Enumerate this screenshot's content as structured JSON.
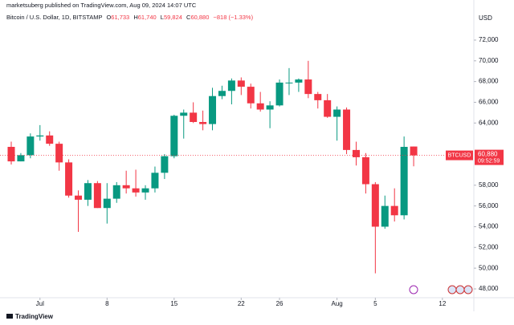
{
  "header": {
    "published": "marketsuberg published on TradingView.com, Aug 09, 2024 14:07 UTC",
    "symbol": "Bitcoin / U.S. Dollar, 1D, BITSTAMP",
    "open_label": "O",
    "open": "61,733",
    "high_label": "H",
    "high": "61,740",
    "low_label": "L",
    "low": "59,824",
    "close_label": "C",
    "close": "60,880",
    "change": "−818 (−1.33%)"
  },
  "chart_data": {
    "type": "candlestick",
    "currency": "USD",
    "x": [
      "2024-06-28",
      "2024-06-29",
      "2024-06-30",
      "2024-07-01",
      "2024-07-02",
      "2024-07-03",
      "2024-07-04",
      "2024-07-05",
      "2024-07-06",
      "2024-07-07",
      "2024-07-08",
      "2024-07-09",
      "2024-07-10",
      "2024-07-11",
      "2024-07-12",
      "2024-07-13",
      "2024-07-14",
      "2024-07-15",
      "2024-07-16",
      "2024-07-17",
      "2024-07-18",
      "2024-07-19",
      "2024-07-20",
      "2024-07-21",
      "2024-07-22",
      "2024-07-23",
      "2024-07-24",
      "2024-07-25",
      "2024-07-26",
      "2024-07-27",
      "2024-07-28",
      "2024-07-29",
      "2024-07-30",
      "2024-07-31",
      "2024-08-01",
      "2024-08-02",
      "2024-08-03",
      "2024-08-04",
      "2024-08-05",
      "2024-08-06",
      "2024-08-07",
      "2024-08-08",
      "2024-08-09"
    ],
    "open": [
      61700,
      60300,
      60900,
      62700,
      62800,
      62000,
      60200,
      57000,
      56600,
      58200,
      55800,
      56700,
      58000,
      57700,
      57300,
      57700,
      59200,
      60800,
      64700,
      65000,
      64100,
      63900,
      66600,
      67100,
      68100,
      67500,
      65900,
      65300,
      65700,
      67900,
      67900,
      68200,
      66800,
      66200,
      64600,
      65300,
      61400,
      60700,
      58100,
      54000,
      56000,
      55100,
      61733
    ],
    "high": [
      62200,
      61100,
      63000,
      63800,
      63200,
      62200,
      60500,
      57500,
      58500,
      58400,
      58200,
      58300,
      59400,
      59500,
      58000,
      59800,
      61000,
      64800,
      65300,
      66000,
      65200,
      67400,
      67600,
      68300,
      68400,
      67800,
      67000,
      66100,
      68200,
      69300,
      68300,
      70000,
      67000,
      66800,
      65600,
      65500,
      62200,
      61100,
      58300,
      57000,
      57700,
      62700,
      61740
    ],
    "low": [
      60000,
      60300,
      60600,
      62300,
      61800,
      59400,
      56800,
      53500,
      56000,
      55800,
      54300,
      56300,
      57200,
      56900,
      56600,
      57300,
      58600,
      60600,
      62500,
      64000,
      63300,
      63300,
      66300,
      65800,
      66700,
      65400,
      65100,
      63500,
      65600,
      66700,
      67000,
      66400,
      65400,
      64500,
      62300,
      61000,
      59900,
      57200,
      49500,
      53800,
      54500,
      54700,
      59824
    ],
    "close": [
      60300,
      60900,
      62700,
      62800,
      62000,
      60200,
      57000,
      56600,
      58200,
      55800,
      56700,
      58000,
      57700,
      57300,
      57700,
      59200,
      60800,
      64700,
      65000,
      64100,
      63900,
      66600,
      67100,
      68100,
      67500,
      65900,
      65300,
      65700,
      67900,
      67900,
      68200,
      66800,
      66200,
      64600,
      65300,
      61400,
      60700,
      58100,
      54000,
      56000,
      55100,
      61700,
      60880
    ],
    "up_color": "#089981",
    "down_color": "#f23645",
    "ylim": [
      47070,
      73700
    ],
    "yticks": [
      {
        "value": 72000,
        "label": "72,000"
      },
      {
        "value": 70000,
        "label": "70,000"
      },
      {
        "value": 68000,
        "label": "68,000"
      },
      {
        "value": 66000,
        "label": "66,000"
      },
      {
        "value": 64000,
        "label": "64,000"
      },
      {
        "value": 58000,
        "label": "58,000"
      },
      {
        "value": 56000,
        "label": "56,000"
      },
      {
        "value": 54000,
        "label": "54,000"
      },
      {
        "value": 52000,
        "label": "52,000"
      },
      {
        "value": 50000,
        "label": "50,000"
      },
      {
        "value": 48000,
        "label": "48,000"
      }
    ],
    "xticks": [
      {
        "value": "2024-07-01",
        "label": "Jul"
      },
      {
        "value": "2024-07-08",
        "label": "8"
      },
      {
        "value": "2024-07-15",
        "label": "15"
      },
      {
        "value": "2024-07-22",
        "label": "22"
      },
      {
        "value": "2024-07-26",
        "label": "26"
      },
      {
        "value": "2024-08-01",
        "label": "Aug"
      },
      {
        "value": "2024-08-05",
        "label": "5"
      },
      {
        "value": "2024-08-12",
        "label": "12"
      }
    ],
    "last_price_symbol": "BTCUSD",
    "last_price_label": "60,880",
    "countdown": "09:52:59"
  },
  "footer": {
    "brand": "TradingView"
  }
}
